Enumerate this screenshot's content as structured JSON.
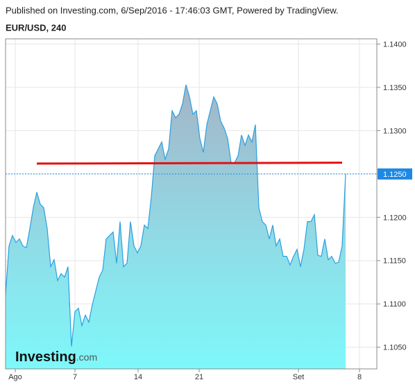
{
  "header": "Published on Investing.com, 6/Sep/2016 - 17:46:03 GMT, Powered by TradingView.",
  "chart_data": {
    "type": "area",
    "title": "EUR/USD, 240",
    "watermark": [
      "Investing",
      ".com"
    ],
    "xlim": [
      0,
      107
    ],
    "xticks": [
      {
        "value": 2.8,
        "label": "Ago"
      },
      {
        "value": 20,
        "label": "7"
      },
      {
        "value": 38.2,
        "label": "14"
      },
      {
        "value": 55.8,
        "label": "21"
      },
      {
        "value": 84.4,
        "label": "Set"
      },
      {
        "value": 102,
        "label": "8"
      }
    ],
    "ylim": [
      1.1025,
      1.1406
    ],
    "yticks": [
      {
        "value": 1.105,
        "label": "1.1050"
      },
      {
        "value": 1.11,
        "label": "1.1100"
      },
      {
        "value": 1.115,
        "label": "1.1150"
      },
      {
        "value": 1.12,
        "label": "1.1200"
      },
      {
        "value": 1.125,
        "label": "1.1250"
      },
      {
        "value": 1.13,
        "label": "1.1300"
      },
      {
        "value": 1.135,
        "label": "1.1350"
      },
      {
        "value": 1.14,
        "label": "1.1400"
      }
    ],
    "grid": true,
    "color": "#2a9fe0",
    "values": [
      1.1111,
      1.1167,
      1.1179,
      1.1171,
      1.1175,
      1.1167,
      1.1165,
      1.1187,
      1.1211,
      1.1229,
      1.1215,
      1.1211,
      1.1187,
      1.1143,
      1.1151,
      1.1127,
      1.1135,
      1.1131,
      1.1143,
      1.1051,
      1.1091,
      1.1095,
      1.1075,
      1.1087,
      1.1079,
      1.1099,
      1.1115,
      1.1131,
      1.1139,
      1.1175,
      1.1179,
      1.1183,
      1.1147,
      1.1195,
      1.1143,
      1.1147,
      1.1195,
      1.1167,
      1.1159,
      1.1167,
      1.1191,
      1.1187,
      1.1223,
      1.1271,
      1.1279,
      1.1287,
      1.1267,
      1.1279,
      1.1323,
      1.1315,
      1.1319,
      1.1331,
      1.1353,
      1.1339,
      1.1319,
      1.1323,
      1.1291,
      1.1275,
      1.1307,
      1.1323,
      1.1339,
      1.1331,
      1.1311,
      1.1303,
      1.1291,
      1.1263,
      1.1263,
      1.1271,
      1.1295,
      1.1283,
      1.1295,
      1.1287,
      1.1307,
      1.1211,
      1.1195,
      1.1191,
      1.1175,
      1.1191,
      1.1167,
      1.1175,
      1.1155,
      1.1155,
      1.1145,
      1.1155,
      1.1163,
      1.1143,
      1.1163,
      1.1195,
      1.1195,
      1.1203,
      1.1156,
      1.1155,
      1.1175,
      1.1151,
      1.1155,
      1.1147,
      1.1148,
      1.1167,
      1.125
    ],
    "trend_line": {
      "x": [
        9,
        97
      ],
      "values": [
        1.1262,
        1.1263
      ],
      "color": "#e41010"
    }
  }
}
